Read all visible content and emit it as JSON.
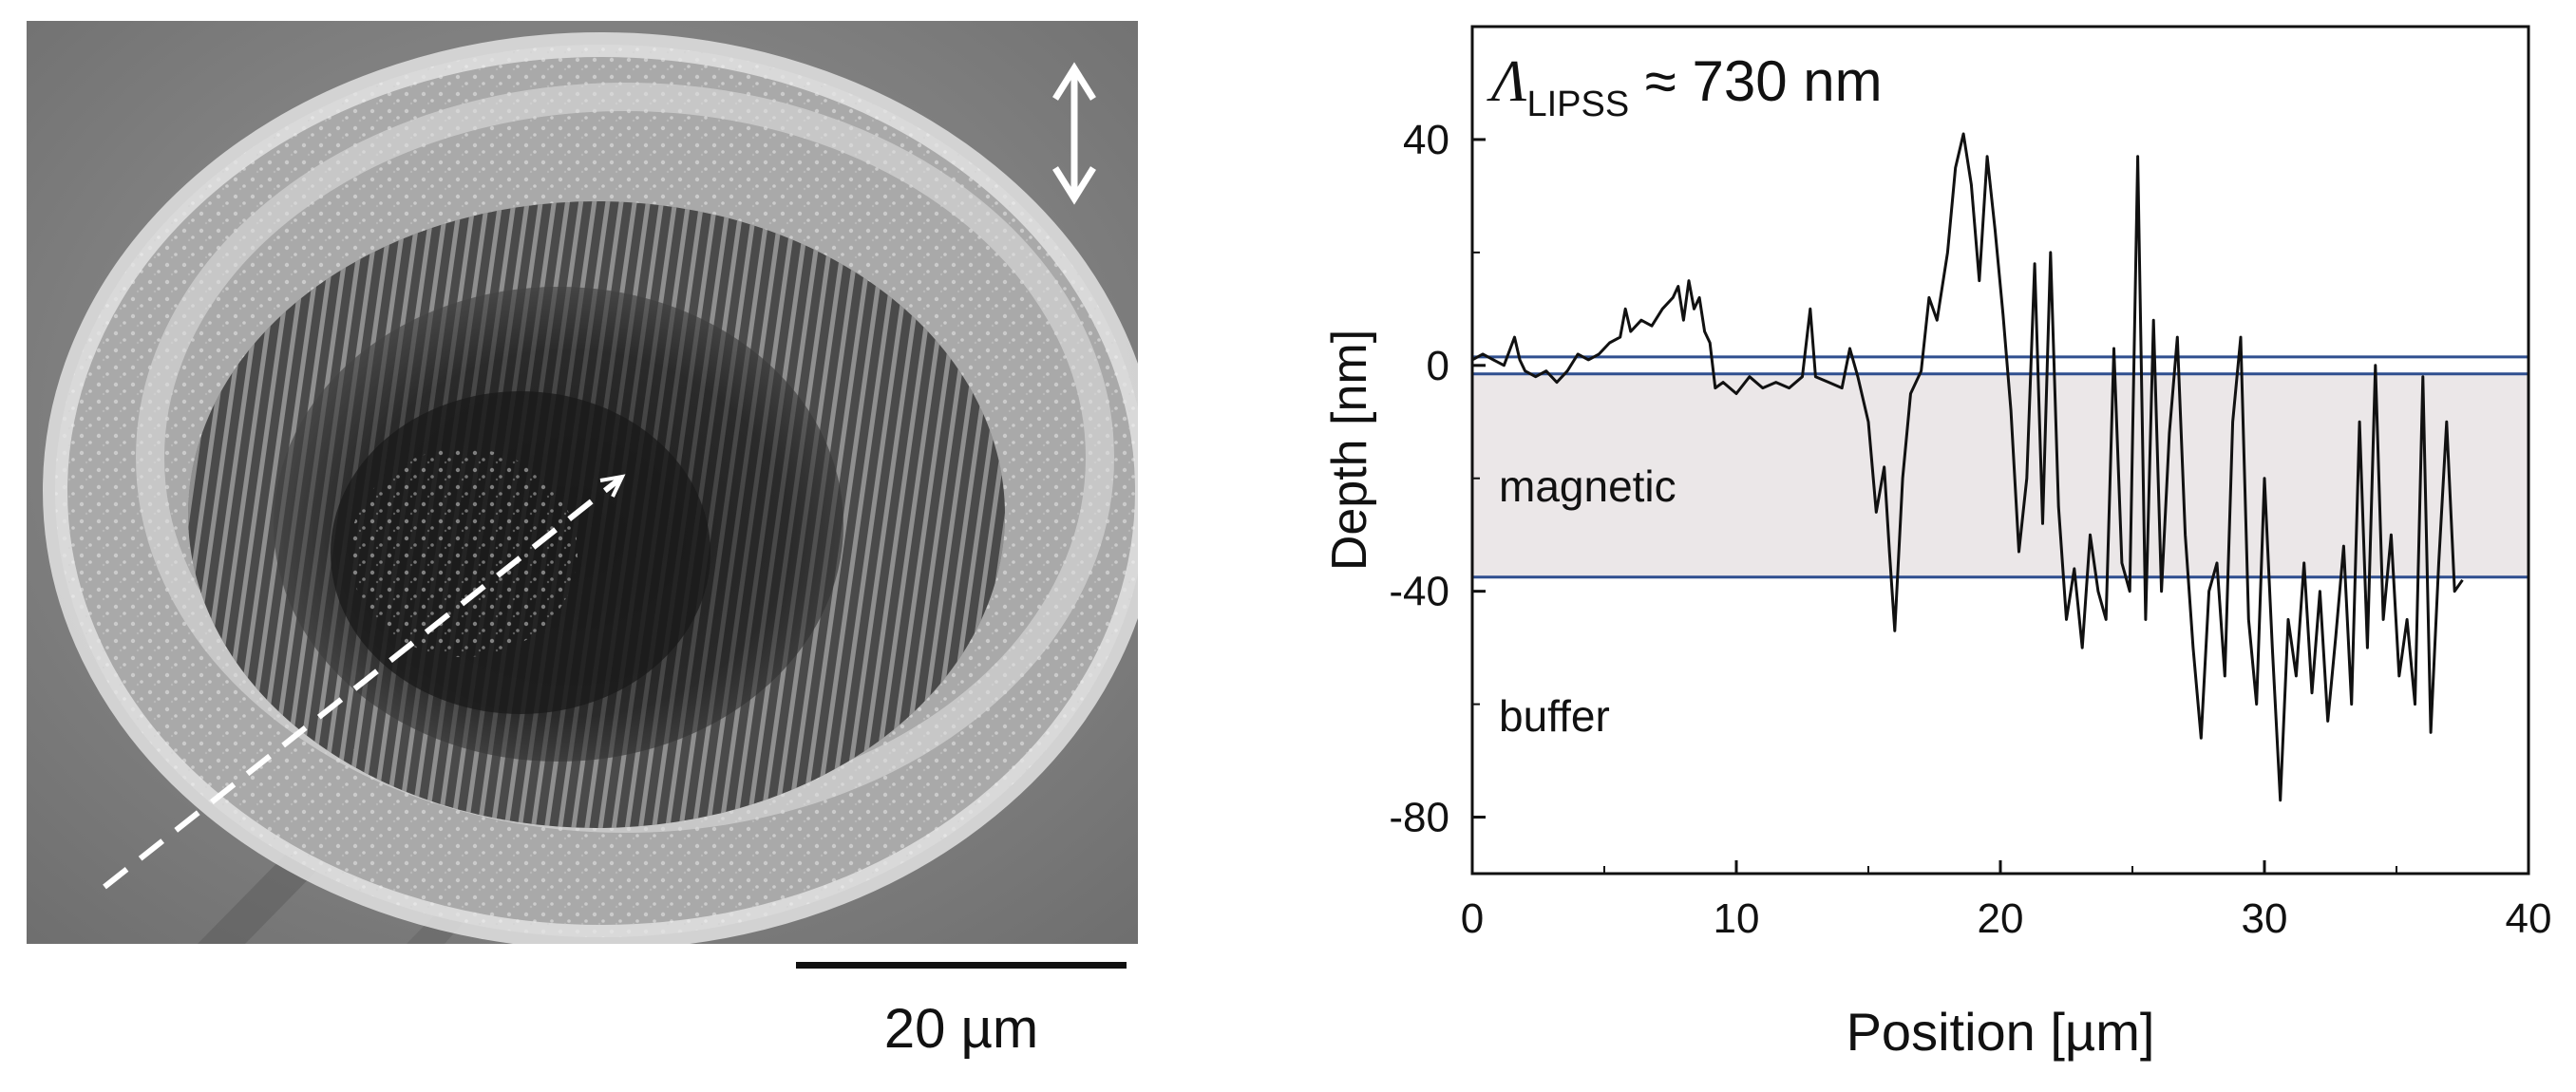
{
  "scale_bar": {
    "label": "20 µm"
  },
  "sem": {
    "description_icon": "polarization-double-arrow-icon"
  },
  "chart_data": {
    "type": "line",
    "xlabel": "Position [µm]",
    "ylabel": "Depth [nm]",
    "xlim": [
      0,
      40
    ],
    "ylim": [
      -90,
      60
    ],
    "xticks": [
      0,
      10,
      20,
      30,
      40
    ],
    "yticks": [
      40,
      0,
      -40,
      -80
    ],
    "annotation": {
      "lambda": "Λ",
      "subscript": "LIPSS",
      "rest": " ≈ 730 nm"
    },
    "region_labels": {
      "magnetic": "magnetic",
      "buffer": "buffer"
    },
    "layer_lines": [
      1.5,
      -1.5,
      -37.5
    ],
    "magnetic_band": [
      -1.5,
      -37.5
    ],
    "colors": {
      "profile": "#111111",
      "layer_line": "#2f4f8f",
      "band": "#ebe7e8"
    },
    "series": [
      {
        "name": "depth profile",
        "x": [
          0,
          0.4,
          0.8,
          1.2,
          1.6,
          1.8,
          2.0,
          2.4,
          2.8,
          3.2,
          3.6,
          4.0,
          4.4,
          4.8,
          5.2,
          5.6,
          5.8,
          6.0,
          6.4,
          6.8,
          7.2,
          7.6,
          7.8,
          8.0,
          8.2,
          8.4,
          8.6,
          8.8,
          9.0,
          9.2,
          9.5,
          10.0,
          10.5,
          11.0,
          11.5,
          12.0,
          12.5,
          12.8,
          13.0,
          13.5,
          14.0,
          14.3,
          14.6,
          15.0,
          15.3,
          15.6,
          15.8,
          16.0,
          16.3,
          16.6,
          17.0,
          17.3,
          17.6,
          18.0,
          18.3,
          18.6,
          18.9,
          19.2,
          19.5,
          19.8,
          20.1,
          20.4,
          20.7,
          21.0,
          21.3,
          21.6,
          21.9,
          22.2,
          22.5,
          22.8,
          23.1,
          23.4,
          23.7,
          24.0,
          24.3,
          24.6,
          24.9,
          25.2,
          25.5,
          25.8,
          26.1,
          26.4,
          26.7,
          27.0,
          27.3,
          27.6,
          27.9,
          28.2,
          28.5,
          28.8,
          29.1,
          29.4,
          29.7,
          30.0,
          30.3,
          30.6,
          30.9,
          31.2,
          31.5,
          31.8,
          32.1,
          32.4,
          32.7,
          33.0,
          33.3,
          33.6,
          33.9,
          34.2,
          34.5,
          34.8,
          35.1,
          35.4,
          35.7,
          36.0,
          36.3,
          36.6,
          36.9,
          37.2,
          37.5
        ],
        "y": [
          1,
          2,
          1,
          0,
          5,
          1,
          -1,
          -2,
          -1,
          -3,
          -1,
          2,
          1,
          2,
          4,
          5,
          10,
          6,
          8,
          7,
          10,
          12,
          14,
          8,
          15,
          10,
          12,
          6,
          4,
          -4,
          -3,
          -5,
          -2,
          -4,
          -3,
          -4,
          -2,
          10,
          -2,
          -3,
          -4,
          3,
          -2,
          -10,
          -26,
          -18,
          -33,
          -47,
          -20,
          -5,
          -1,
          12,
          8,
          20,
          35,
          41,
          32,
          15,
          37,
          24,
          9,
          -8,
          -33,
          -20,
          18,
          -28,
          20,
          -25,
          -45,
          -36,
          -50,
          -30,
          -40,
          -45,
          3,
          -35,
          -40,
          37,
          -45,
          8,
          -40,
          -12,
          5,
          -30,
          -50,
          -66,
          -40,
          -35,
          -55,
          -10,
          5,
          -45,
          -60,
          -20,
          -50,
          -77,
          -45,
          -55,
          -35,
          -58,
          -40,
          -63,
          -48,
          -32,
          -60,
          -10,
          -50,
          0,
          -45,
          -30,
          -55,
          -45,
          -60,
          -2,
          -65,
          -35,
          -10,
          -40,
          -38
        ]
      }
    ]
  }
}
